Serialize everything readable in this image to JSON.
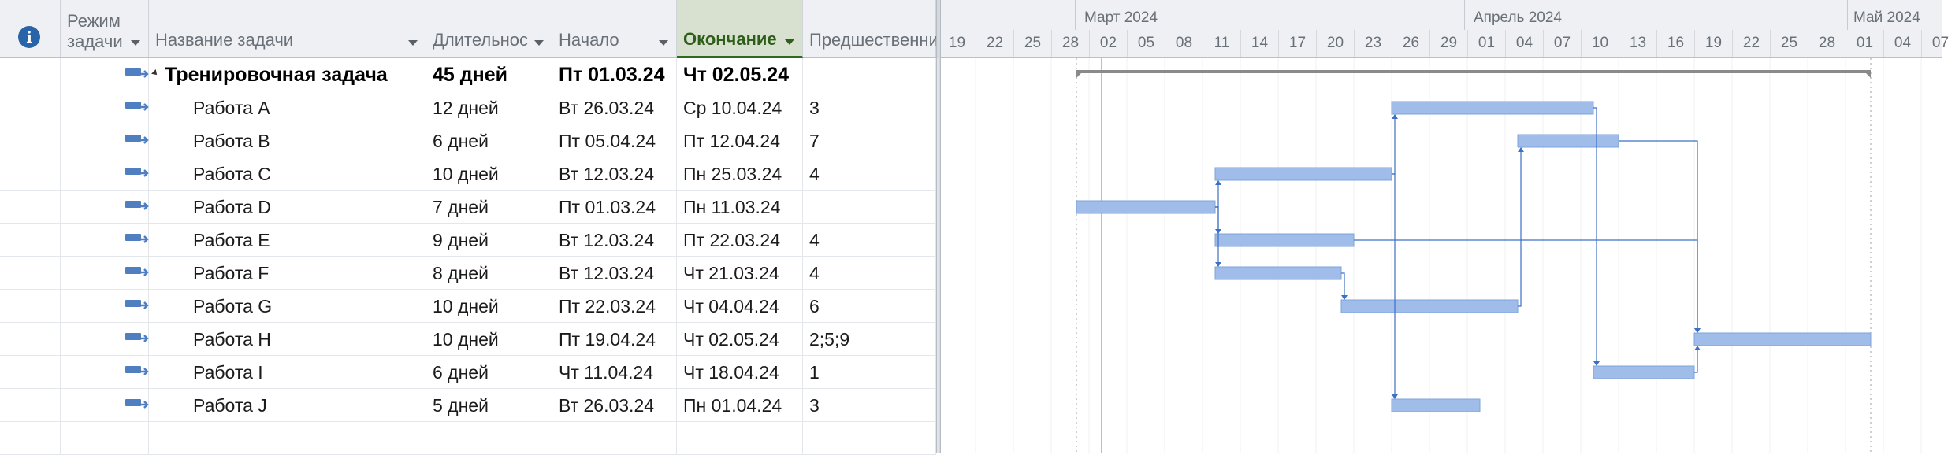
{
  "columns": {
    "mode": "Режим задачи",
    "name": "Название задачи",
    "duration": "Длительнос",
    "start": "Начало",
    "finish": "Окончание",
    "predecessors": "Предшественни"
  },
  "tasks": [
    {
      "name": "Тренировочная задача",
      "duration": "45 дней",
      "start": "Пт 01.03.24",
      "finish": "Чт 02.05.24",
      "pred": "",
      "summary": true
    },
    {
      "name": "Работа A",
      "duration": "12 дней",
      "start": "Вт 26.03.24",
      "finish": "Ср 10.04.24",
      "pred": "3"
    },
    {
      "name": "Работа B",
      "duration": "6 дней",
      "start": "Пт 05.04.24",
      "finish": "Пт 12.04.24",
      "pred": "7"
    },
    {
      "name": "Работа C",
      "duration": "10 дней",
      "start": "Вт 12.03.24",
      "finish": "Пн 25.03.24",
      "pred": "4"
    },
    {
      "name": "Работа D",
      "duration": "7 дней",
      "start": "Пт 01.03.24",
      "finish": "Пн 11.03.24",
      "pred": ""
    },
    {
      "name": "Работа E",
      "duration": "9 дней",
      "start": "Вт 12.03.24",
      "finish": "Пт 22.03.24",
      "pred": "4"
    },
    {
      "name": "Работа F",
      "duration": "8 дней",
      "start": "Вт 12.03.24",
      "finish": "Чт 21.03.24",
      "pred": "4"
    },
    {
      "name": "Работа G",
      "duration": "10 дней",
      "start": "Пт 22.03.24",
      "finish": "Чт 04.04.24",
      "pred": "6"
    },
    {
      "name": "Работа H",
      "duration": "10 дней",
      "start": "Пт 19.04.24",
      "finish": "Чт 02.05.24",
      "pred": "2;5;9"
    },
    {
      "name": "Работа I",
      "duration": "6 дней",
      "start": "Чт 11.04.24",
      "finish": "Чт 18.04.24",
      "pred": "1"
    },
    {
      "name": "Работа J",
      "duration": "5 дней",
      "start": "Вт 26.03.24",
      "finish": "Пн 01.04.24",
      "pred": "3"
    }
  ],
  "timeline": {
    "months": [
      "Март 2024",
      "Апрель 2024",
      "Май 2024"
    ],
    "days": [
      "19",
      "22",
      "25",
      "28",
      "02",
      "05",
      "08",
      "11",
      "14",
      "17",
      "20",
      "23",
      "26",
      "29",
      "01",
      "04",
      "07",
      "10",
      "13",
      "16",
      "19",
      "22",
      "25",
      "28",
      "01",
      "04",
      "07"
    ]
  },
  "colors": {
    "bar": "#9fbde8",
    "bar_edge": "#7fa4db",
    "link": "#3d6fc4",
    "summary": "#8a8a8a",
    "today_line": "#8fbf7f"
  },
  "icons": {
    "info": "info-icon",
    "task_mode": "auto-schedule-icon"
  }
}
